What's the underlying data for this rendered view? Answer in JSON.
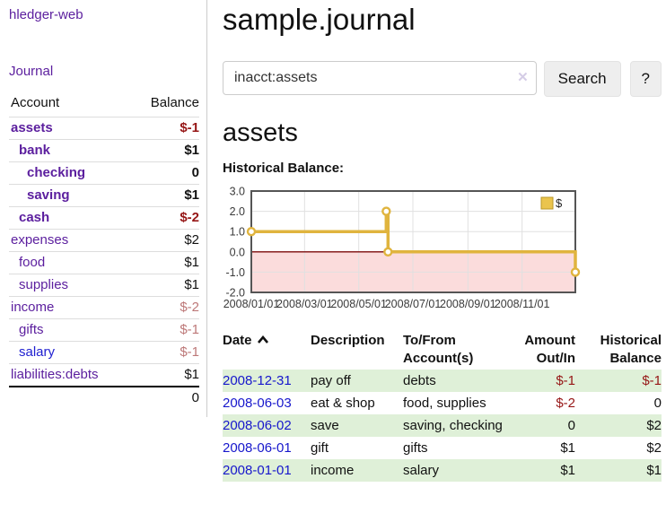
{
  "sidebar": {
    "brand": "hledger-web",
    "journal_label": "Journal",
    "account_header": "Account",
    "balance_header": "Balance",
    "accounts": [
      {
        "name": "assets",
        "indent": 1,
        "bold": true,
        "balance": "$-1",
        "balance_tone": "negative"
      },
      {
        "name": "bank",
        "indent": 2,
        "bold": true,
        "balance": "$1",
        "balance_tone": "normal"
      },
      {
        "name": "checking",
        "indent": 3,
        "bold": true,
        "balance": "0",
        "balance_tone": "normal"
      },
      {
        "name": "saving",
        "indent": 3,
        "bold": true,
        "balance": "$1",
        "balance_tone": "normal"
      },
      {
        "name": "cash",
        "indent": 2,
        "bold": true,
        "balance": "$-2",
        "balance_tone": "negative"
      },
      {
        "name": "expenses",
        "indent": 1,
        "bold": false,
        "balance": "$2",
        "balance_tone": "normal"
      },
      {
        "name": "food",
        "indent": 2,
        "bold": false,
        "balance": "$1",
        "balance_tone": "normal"
      },
      {
        "name": "supplies",
        "indent": 2,
        "bold": false,
        "balance": "$1",
        "balance_tone": "normal"
      },
      {
        "name": "income",
        "indent": 1,
        "bold": false,
        "balance": "$-2",
        "balance_tone": "muted-negative"
      },
      {
        "name": "gifts",
        "indent": 2,
        "bold": false,
        "balance": "$-1",
        "balance_tone": "muted-negative"
      },
      {
        "name": "salary",
        "indent": 2,
        "bold": false,
        "link_tone": "unvisited",
        "balance": "$-1",
        "balance_tone": "muted-negative"
      },
      {
        "name": "liabilities:debts",
        "indent": 1,
        "bold": false,
        "balance": "$1",
        "balance_tone": "normal"
      }
    ],
    "total": "0"
  },
  "main": {
    "title": "sample.journal",
    "search": {
      "value": "inacct:assets",
      "button_label": "Search",
      "help_label": "?",
      "clear_icon": "✕"
    },
    "account_heading": "assets"
  },
  "register": {
    "headers": {
      "date": "Date",
      "description": "Description",
      "tofrom": "To/From Account(s)",
      "amount": "Amount Out/In",
      "balance": "Historical Balance"
    },
    "rows": [
      {
        "date": "2008-12-31",
        "description": "pay off",
        "accounts": "debts",
        "amount": "$-1",
        "balance": "$-1",
        "shaded": true
      },
      {
        "date": "2008-06-03",
        "description": "eat & shop",
        "accounts": "food, supplies",
        "amount": "$-2",
        "balance": "0",
        "shaded": false
      },
      {
        "date": "2008-06-02",
        "description": "save",
        "accounts": "saving, checking",
        "amount": "0",
        "balance": "$2",
        "shaded": true
      },
      {
        "date": "2008-06-01",
        "description": "gift",
        "accounts": "gifts",
        "amount": "$1",
        "balance": "$2",
        "shaded": false
      },
      {
        "date": "2008-01-01",
        "description": "income",
        "accounts": "salary",
        "amount": "$1",
        "balance": "$1",
        "shaded": true
      }
    ]
  },
  "chart_data": {
    "type": "line",
    "step": true,
    "title": "Historical Balance:",
    "series": [
      {
        "name": "$",
        "points": [
          {
            "date": "2008-01-01",
            "value": 1
          },
          {
            "date": "2008-06-01",
            "value": 2
          },
          {
            "date": "2008-06-03",
            "value": 0
          },
          {
            "date": "2008-12-31",
            "value": -1
          }
        ]
      }
    ],
    "ylim": [
      -2,
      3
    ],
    "yticks": [
      3.0,
      2.0,
      1.0,
      0.0,
      -1.0,
      -2.0
    ],
    "xticks": [
      "2008/01/01",
      "2008/03/01",
      "2008/05/01",
      "2008/07/01",
      "2008/09/01",
      "2008/11/01"
    ],
    "x_domain": [
      "2008-01-01",
      "2008-12-31"
    ],
    "grid": true,
    "legend_position": "top-right",
    "legend_label": "$",
    "line_color": "#e0b43e",
    "marker_fill": "#ffffff",
    "legend_swatch_fill": "#eac44d",
    "legend_swatch_border": "#b99727",
    "negative_region_fill": "#fbdcdc",
    "zero_line_color": "#7e0b0b",
    "grid_color": "#e0e0e0",
    "border_color": "#555555",
    "tick_color": "#3a3a3a"
  },
  "colors": {
    "link_purple": "#5b1e9e",
    "link_blue": "#1f1fd0",
    "negative": "#961616",
    "muted_negative": "#bd7878",
    "row_shade_green": "#dff0d8",
    "accent_gold": "#e0b43e"
  }
}
